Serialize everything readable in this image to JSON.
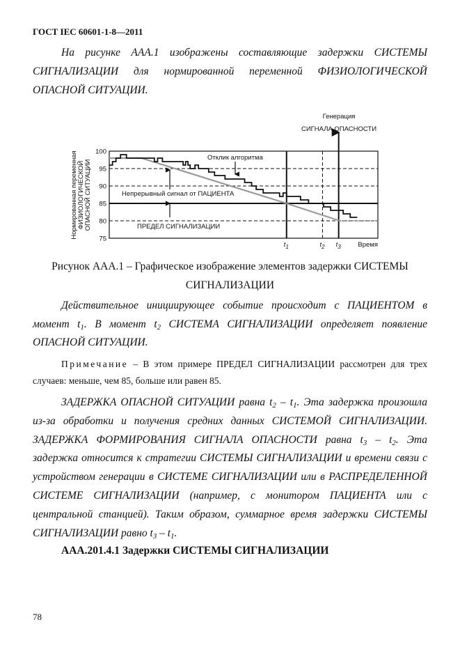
{
  "header": "ГОСТ IEC 60601-1-8—2011",
  "paragraphs": [
    {
      "id": "p1",
      "top": 67,
      "lh": 27,
      "indent": true,
      "lines": [
        [
          {
            "t": "На рисунке ААА.1 изображены составляющие задержки СИСТЕМЫ"
          }
        ],
        [
          {
            "t": "СИГНАЛИЗАЦИИ для нормированной переменной ФИЗИОЛОГИЧЕСКОЙ"
          }
        ],
        [
          {
            "t": "ОПАСНОЙ СИТУАЦИИ."
          }
        ]
      ]
    },
    {
      "id": "p2",
      "top": 430,
      "lh": 26.5,
      "indent": true,
      "lines": [
        [
          {
            "t": "Действительное инициирующее событие происходит с ПАЦИЕНТОМ в"
          }
        ],
        [
          {
            "t": "момент t"
          },
          {
            "s": "1"
          },
          {
            "t": ". В момент t"
          },
          {
            "s": "2"
          },
          {
            "t": " СИСТЕМА СИГНАЛИЗАЦИИ определяет появление"
          }
        ],
        [
          {
            "t": "ОПАСНОЙ СИТУАЦИИ."
          }
        ]
      ]
    },
    {
      "id": "p4",
      "top": 569,
      "lh": 26.8,
      "indent": true,
      "lines": [
        [
          {
            "t": "ЗАДЕРЖКА ОПАСНОЙ СИТУАЦИИ равна t"
          },
          {
            "s": "2"
          },
          {
            "t": " – t"
          },
          {
            "s": "1"
          },
          {
            "t": ". Эта задержка произошла"
          }
        ],
        [
          {
            "t": "из-за обработки и получения средних данных СИСТЕМОЙ СИГНАЛИЗАЦИИ."
          }
        ],
        [
          {
            "t": "ЗАДЕРЖКА ФОРМИРОВАНИЯ СИГНАЛА ОПАСНОСТИ равна t"
          },
          {
            "s": "3"
          },
          {
            "t": " – t"
          },
          {
            "s": "2"
          },
          {
            "t": ". Эта"
          }
        ],
        [
          {
            "t": "задержка относится к стратегии СИСТЕМЫ СИГНАЛИЗАЦИИ и времени связи с"
          }
        ],
        [
          {
            "t": "устройством генерации в СИСТЕМЕ СИГНАЛИЗАЦИИ или в РАСПРЕДЕЛЕННОЙ"
          }
        ],
        [
          {
            "t": "СИСТЕМЕ СИГНАЛИЗАЦИИ (например, с монитором ПАЦИЕНТА или с"
          }
        ],
        [
          {
            "t": "центральной станцией). Таким образом, суммарное время задержки СИСТЕМЫ"
          }
        ],
        [
          {
            "t": "СИГНАЛИЗАЦИИ равно t"
          },
          {
            "s": "3"
          },
          {
            "t": " – t"
          },
          {
            "s": "1"
          },
          {
            "t": "."
          }
        ]
      ]
    }
  ],
  "figure_caption": [
    "Рисунок ААА.1 – Графическое изображение элементов задержки СИСТЕМЫ",
    "СИГНАЛИЗАЦИИ"
  ],
  "note": {
    "label": "Примечание",
    "line1": " – В этом примере ПРЕДЕЛ СИГНАЛИЗАЦИИ рассмотрен для трех",
    "line2": "случаев: меньше, чем 85, больше или равен 85."
  },
  "heading": "ААА.201.4.1 Задержки СИСТЕМЫ СИГНАЛИЗАЦИИ",
  "page_number": "78",
  "chart_data": {
    "type": "line",
    "ylabel": [
      "Нормированная переменная",
      "ФИЗИОЛОГИЧЕСКОЙ",
      "ОПАСНОЙ СИТУАЦИИ"
    ],
    "xlabel": "Время",
    "ylim": [
      75,
      100
    ],
    "yticks": [
      "100",
      "95",
      "90",
      "85",
      "80",
      "75"
    ],
    "xlim": [
      0,
      100
    ],
    "grid_dashed_y": [
      95,
      90,
      80
    ],
    "alarm_limit": 85,
    "markers": [
      {
        "label": "t",
        "sub": "1",
        "x": 66,
        "style": "solid"
      },
      {
        "label": "t",
        "sub": "2",
        "x": 79.4,
        "style": "dashed"
      },
      {
        "label": "t",
        "sub": "3",
        "x": 85.4,
        "style": "solid"
      }
    ],
    "patient_signal": {
      "color": "#999999",
      "points": [
        [
          0,
          98
        ],
        [
          12,
          98
        ],
        [
          66,
          85
        ],
        [
          85.8,
          80
        ],
        [
          100,
          80
        ]
      ]
    },
    "algorithm_response": {
      "color": "#111111",
      "steps": [
        [
          0,
          96
        ],
        [
          1.2,
          97
        ],
        [
          2.5,
          98
        ],
        [
          4.2,
          99
        ],
        [
          6.4,
          98
        ],
        [
          16.8,
          97
        ],
        [
          18,
          98
        ],
        [
          19.8,
          97
        ],
        [
          27.5,
          96
        ],
        [
          28.4,
          97
        ],
        [
          29.3,
          96
        ],
        [
          30.1,
          95
        ],
        [
          31.9,
          96
        ],
        [
          33.2,
          95
        ],
        [
          37,
          94
        ],
        [
          39.2,
          93
        ],
        [
          43.1,
          92
        ],
        [
          50.4,
          91
        ],
        [
          53,
          90
        ],
        [
          54.7,
          89
        ],
        [
          57.3,
          88
        ],
        [
          63.4,
          87
        ],
        [
          64.7,
          88
        ],
        [
          66,
          87
        ],
        [
          71.2,
          86
        ],
        [
          74.2,
          85
        ],
        [
          79.8,
          84
        ],
        [
          82.4,
          83
        ],
        [
          87.1,
          82
        ],
        [
          89.7,
          81
        ],
        [
          92.3,
          81
        ]
      ]
    },
    "annotations": {
      "alarm_generation": [
        "Генерация",
        "СИГНАЛА ОПАСНОСТИ"
      ],
      "algorithm_label": "Отклик алгоритма",
      "patient_label": "Непрерывный сигнал от ПАЦИЕНТА",
      "limit_label": "ПРЕДЕЛ СИГНАЛИЗАЦИИ"
    }
  }
}
